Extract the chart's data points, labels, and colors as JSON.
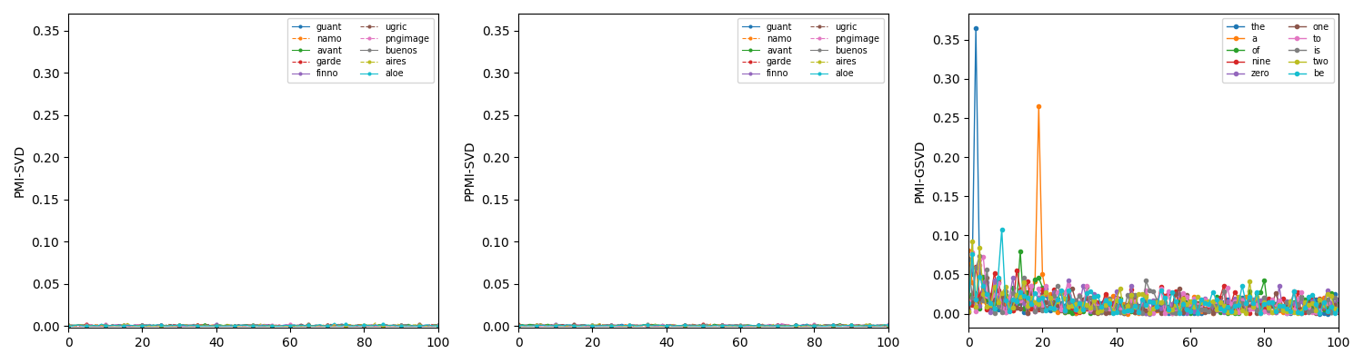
{
  "panel1_ylabel": "PMI-SVD",
  "panel2_ylabel": "PPMI-SVD",
  "panel3_ylabel": "PMI-GSVD",
  "xlim": [
    0,
    100
  ],
  "n_points": 101,
  "panel12_series": [
    "guant",
    "namo",
    "avant",
    "garde",
    "finno",
    "ugric",
    "pngimage",
    "buenos",
    "aires",
    "aloe"
  ],
  "panel12_colors": [
    "#1f77b4",
    "#ff7f0e",
    "#2ca02c",
    "#d62728",
    "#9467bd",
    "#8c564b",
    "#e377c2",
    "#7f7f7f",
    "#bcbd22",
    "#17becf"
  ],
  "panel12_linestyles": [
    "-",
    "--",
    "-",
    "--",
    "-",
    "--",
    "--",
    "-",
    "--",
    "-"
  ],
  "panel3_series": [
    "the",
    "a",
    "of",
    "nine",
    "zero",
    "one",
    "to",
    "is",
    "two",
    "be"
  ],
  "panel3_colors": [
    "#1f77b4",
    "#ff7f0e",
    "#2ca02c",
    "#d62728",
    "#9467bd",
    "#8c564b",
    "#e377c2",
    "#7f7f7f",
    "#bcbd22",
    "#17becf"
  ],
  "panel3_linestyles": [
    "-",
    "-",
    "-",
    "-",
    "-",
    "-",
    "-",
    "-",
    "-",
    "-"
  ],
  "ylim1": [
    0,
    0.37
  ],
  "ylim3_max": 0.37,
  "yticks": [
    0.0,
    0.05,
    0.1,
    0.15,
    0.2,
    0.25,
    0.3,
    0.35
  ]
}
